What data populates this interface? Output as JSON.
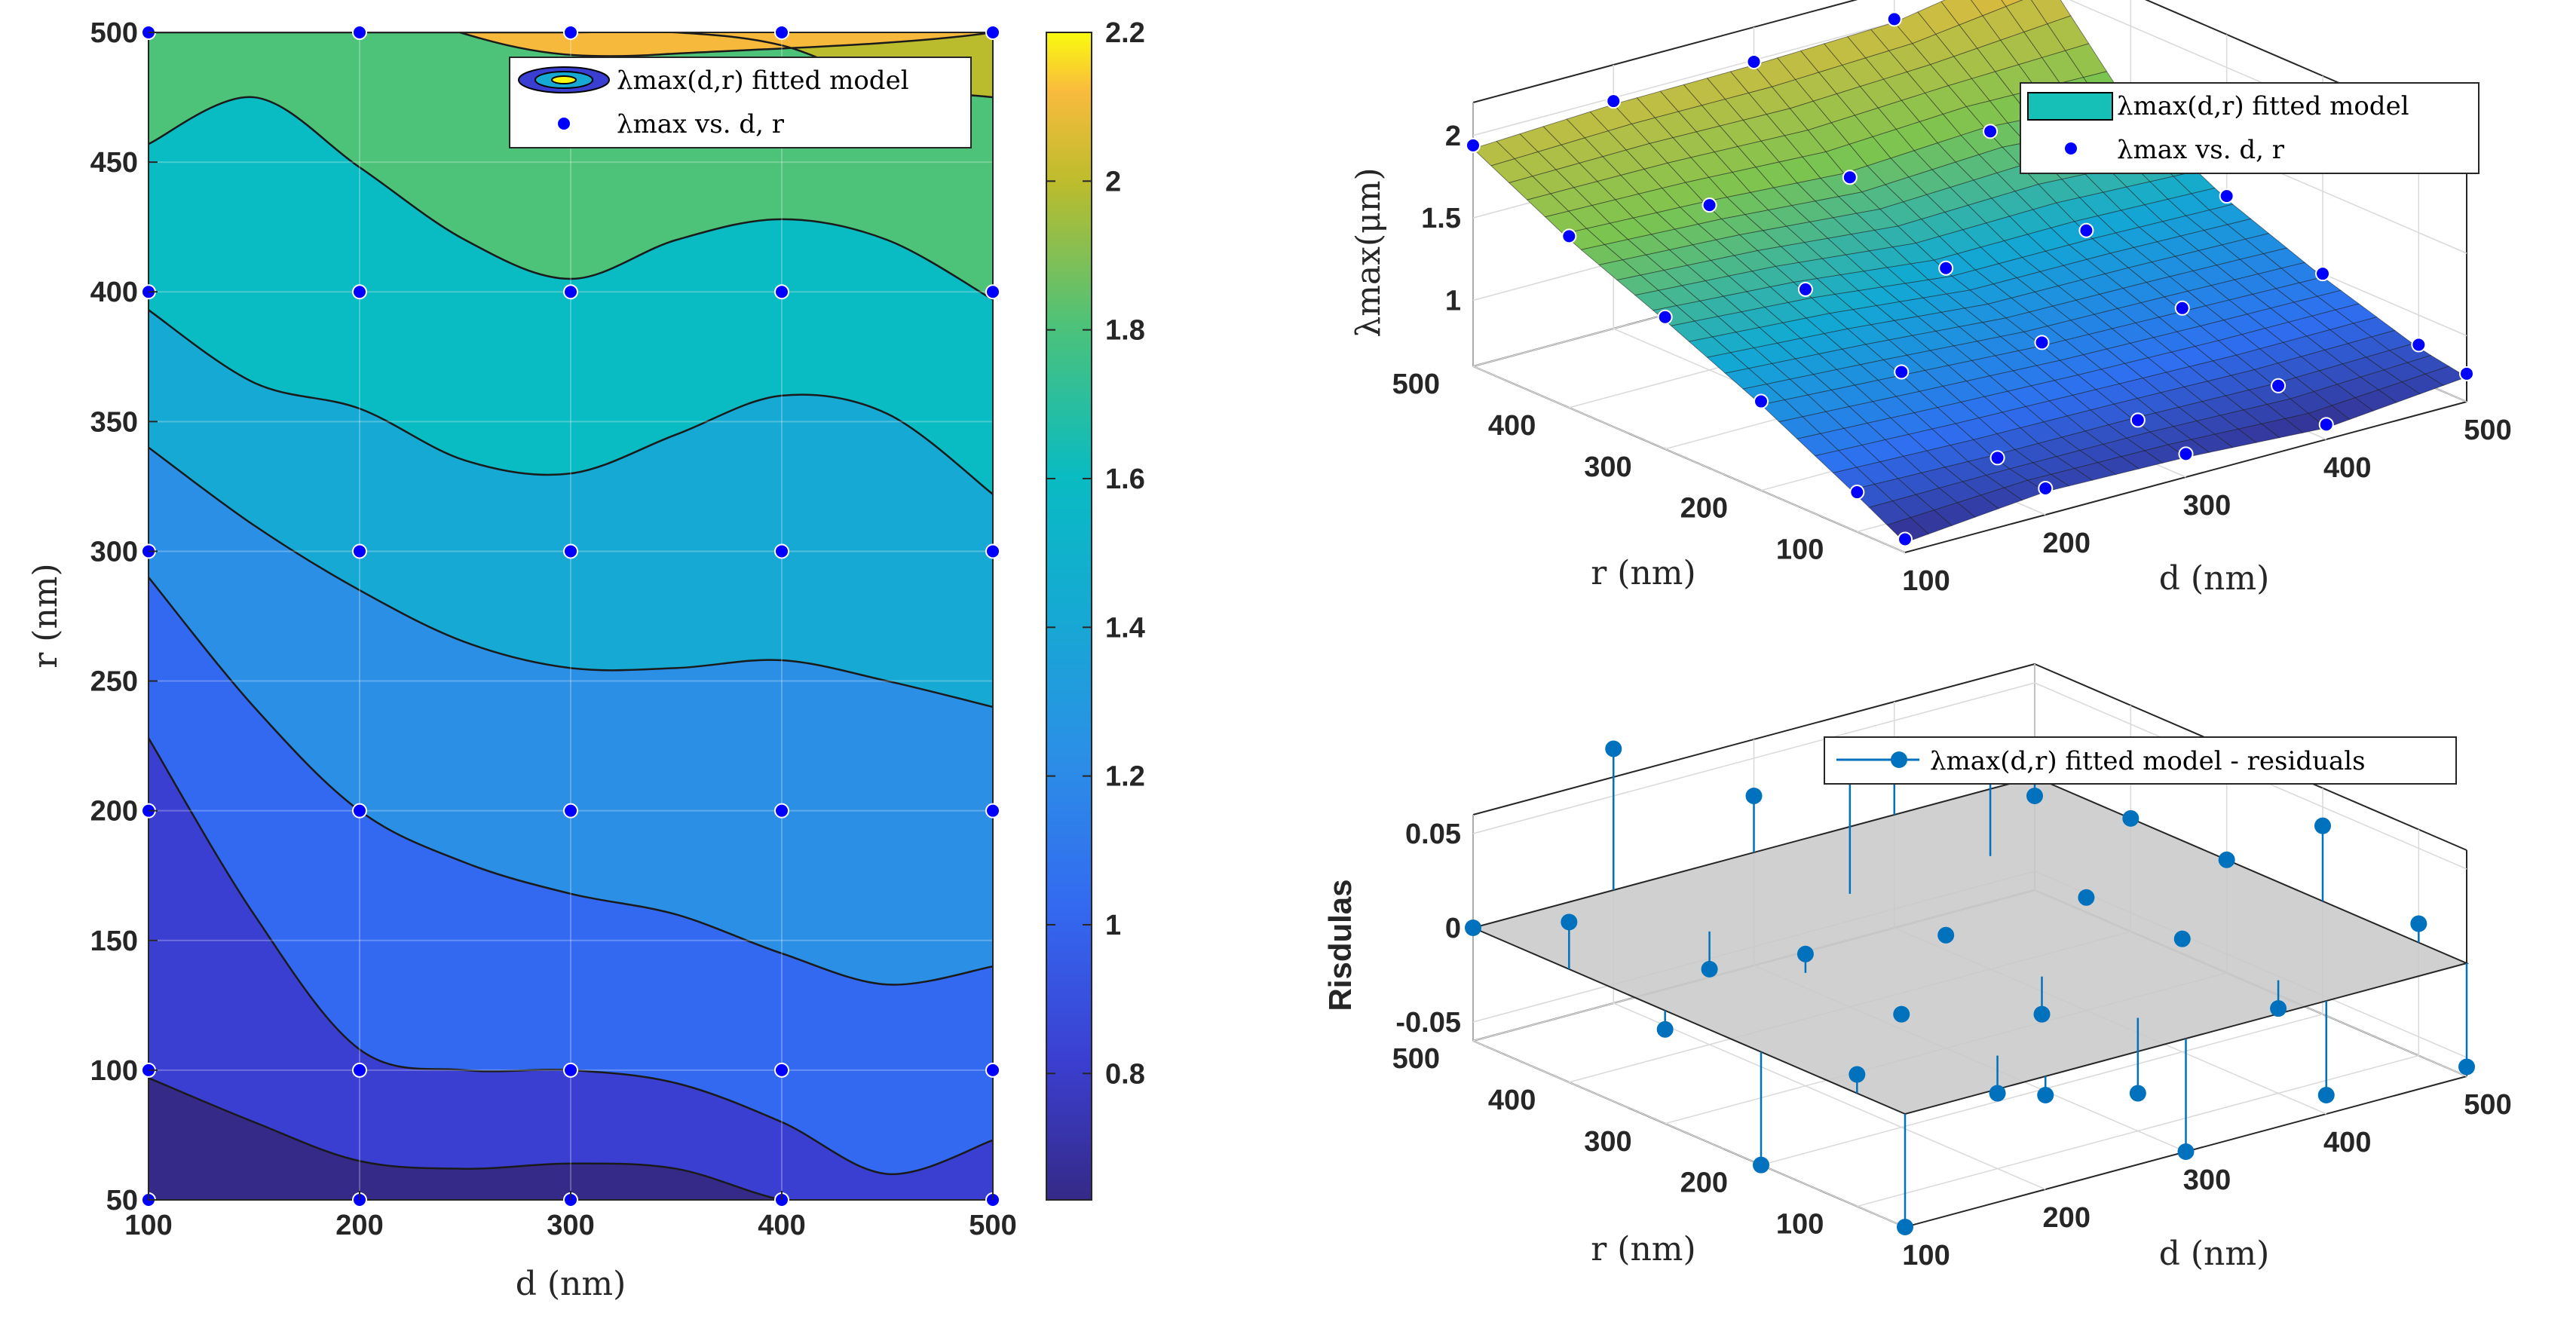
{
  "chart_data": [
    {
      "type": "contour",
      "title": "",
      "xlabel": "d (nm)",
      "ylabel": "r (nm)",
      "xlim": [
        100,
        500
      ],
      "ylim": [
        50,
        500
      ],
      "x_ticks": [
        "100",
        "200",
        "300",
        "400",
        "500"
      ],
      "y_ticks": [
        "50",
        "100",
        "150",
        "200",
        "250",
        "300",
        "350",
        "400",
        "450",
        "500"
      ],
      "colorbar": {
        "range": [
          0.63,
          2.2
        ],
        "ticks": [
          "0.8",
          "1",
          "1.2",
          "1.4",
          "1.6",
          "1.8",
          "2",
          "2.2"
        ],
        "levels": [
          0.7,
          0.8,
          0.9,
          1.1,
          1.3,
          1.45,
          1.65,
          1.85,
          2.05
        ],
        "colors": [
          "#352a87",
          "#3b3fd1",
          "#3369f0",
          "#2b8fe6",
          "#16a9d3",
          "#09bbc2",
          "#4dc279",
          "#bbbc2d",
          "#f9bb3d"
        ]
      },
      "contour_lines_r_at_d": {
        "d": [
          100,
          150,
          200,
          250,
          300,
          350,
          400,
          450,
          500
        ],
        "lines": [
          [
            97,
            80,
            65,
            62,
            64,
            62,
            50,
            45,
            50
          ],
          [
            228,
            160,
            108,
            100,
            100,
            95,
            80,
            60,
            73
          ],
          [
            290,
            240,
            200,
            180,
            168,
            160,
            145,
            133,
            140
          ],
          [
            340,
            310,
            285,
            265,
            255,
            255,
            258,
            250,
            240
          ],
          [
            393,
            365,
            355,
            335,
            330,
            345,
            360,
            353,
            322
          ],
          [
            457,
            475,
            448,
            420,
            405,
            420,
            428,
            420,
            397
          ],
          [
            500,
            500,
            500,
            500,
            500,
            500,
            495,
            480,
            475
          ]
        ]
      },
      "points": {
        "d": [
          100,
          200,
          300,
          400,
          500
        ],
        "r": [
          50,
          100,
          200,
          300,
          400,
          500
        ]
      },
      "legend": {
        "position": "top-right",
        "entries": [
          "λmax(d,r) fitted model",
          "λmax vs. d, r"
        ]
      }
    },
    {
      "type": "surface3d",
      "xlabel": "d (nm)",
      "ylabel": "r (nm)",
      "zlabel": "λmax(μm)",
      "d_ticks": [
        "100",
        "200",
        "300",
        "400",
        "500"
      ],
      "r_ticks": [
        "100",
        "200",
        "300",
        "400",
        "500"
      ],
      "z_ticks": [
        "1",
        "1.5",
        "2"
      ],
      "zlim": [
        0.6,
        2.2
      ],
      "surface_lambda_um": {
        "d": [
          100,
          200,
          300,
          400,
          500
        ],
        "r": [
          50,
          100,
          200,
          300,
          400,
          500
        ],
        "values": [
          [
            0.66,
            0.74,
            0.72,
            0.67,
            0.75
          ],
          [
            0.82,
            0.8,
            0.8,
            0.78,
            0.8
          ],
          [
            1.12,
            1.07,
            1.02,
            1.0,
            0.98
          ],
          [
            1.38,
            1.32,
            1.22,
            1.22,
            1.2
          ],
          [
            1.62,
            1.58,
            1.52,
            1.57,
            1.5
          ],
          [
            1.92,
            1.96,
            1.97,
            2.0,
            2.15
          ]
        ]
      },
      "legend": {
        "position": "top-right",
        "entries": [
          "λmax(d,r) fitted model",
          "λmax vs. d, r"
        ]
      }
    },
    {
      "type": "stem3d",
      "xlabel": "d (nm)",
      "ylabel": "r (nm)",
      "zlabel": "Risdulas",
      "d_ticks": [
        "100",
        "200",
        "300",
        "400",
        "500"
      ],
      "r_ticks": [
        "100",
        "200",
        "300",
        "400",
        "500"
      ],
      "z_ticks": [
        "-0.05",
        "0",
        "0.05"
      ],
      "zlim": [
        -0.06,
        0.06
      ],
      "residuals": [
        {
          "d": 100,
          "r": 500,
          "v": 0.0
        },
        {
          "d": 200,
          "r": 500,
          "v": 0.075
        },
        {
          "d": 300,
          "r": 500,
          "v": 0.03
        },
        {
          "d": 400,
          "r": 500,
          "v": 0.03
        },
        {
          "d": 500,
          "r": 500,
          "v": -0.01
        },
        {
          "d": 100,
          "r": 400,
          "v": 0.025
        },
        {
          "d": 200,
          "r": 400,
          "v": -0.02
        },
        {
          "d": 300,
          "r": 400,
          "v": 0.075
        },
        {
          "d": 400,
          "r": 400,
          "v": 0.05
        },
        {
          "d": 500,
          "r": 400,
          "v": 0.0
        },
        {
          "d": 100,
          "r": 300,
          "v": -0.01
        },
        {
          "d": 200,
          "r": 300,
          "v": 0.01
        },
        {
          "d": 300,
          "r": 300,
          "v": 0.0
        },
        {
          "d": 400,
          "r": 300,
          "v": 0.0
        },
        {
          "d": 500,
          "r": 300,
          "v": 0.0
        },
        {
          "d": 100,
          "r": 200,
          "v": -0.06
        },
        {
          "d": 200,
          "r": 200,
          "v": 0.0
        },
        {
          "d": 300,
          "r": 200,
          "v": -0.02
        },
        {
          "d": 400,
          "r": 200,
          "v": 0.0
        },
        {
          "d": 500,
          "r": 200,
          "v": 0.04
        },
        {
          "d": 100,
          "r": 100,
          "v": 0.01
        },
        {
          "d": 200,
          "r": 100,
          "v": -0.02
        },
        {
          "d": 300,
          "r": 100,
          "v": -0.04
        },
        {
          "d": 400,
          "r": 100,
          "v": -0.015
        },
        {
          "d": 500,
          "r": 100,
          "v": 0.01
        },
        {
          "d": 100,
          "r": 50,
          "v": -0.06
        },
        {
          "d": 200,
          "r": 50,
          "v": -0.01
        },
        {
          "d": 300,
          "r": 50,
          "v": -0.06
        },
        {
          "d": 400,
          "r": 50,
          "v": -0.05
        },
        {
          "d": 500,
          "r": 50,
          "v": -0.055
        }
      ],
      "legend": {
        "position": "top-right",
        "entries": [
          "λmax(d,r) fitted model - residuals"
        ]
      }
    }
  ],
  "colors": {
    "marker": "#0000ff",
    "stem": "#0072bd",
    "plane": "#c8c8c8"
  }
}
